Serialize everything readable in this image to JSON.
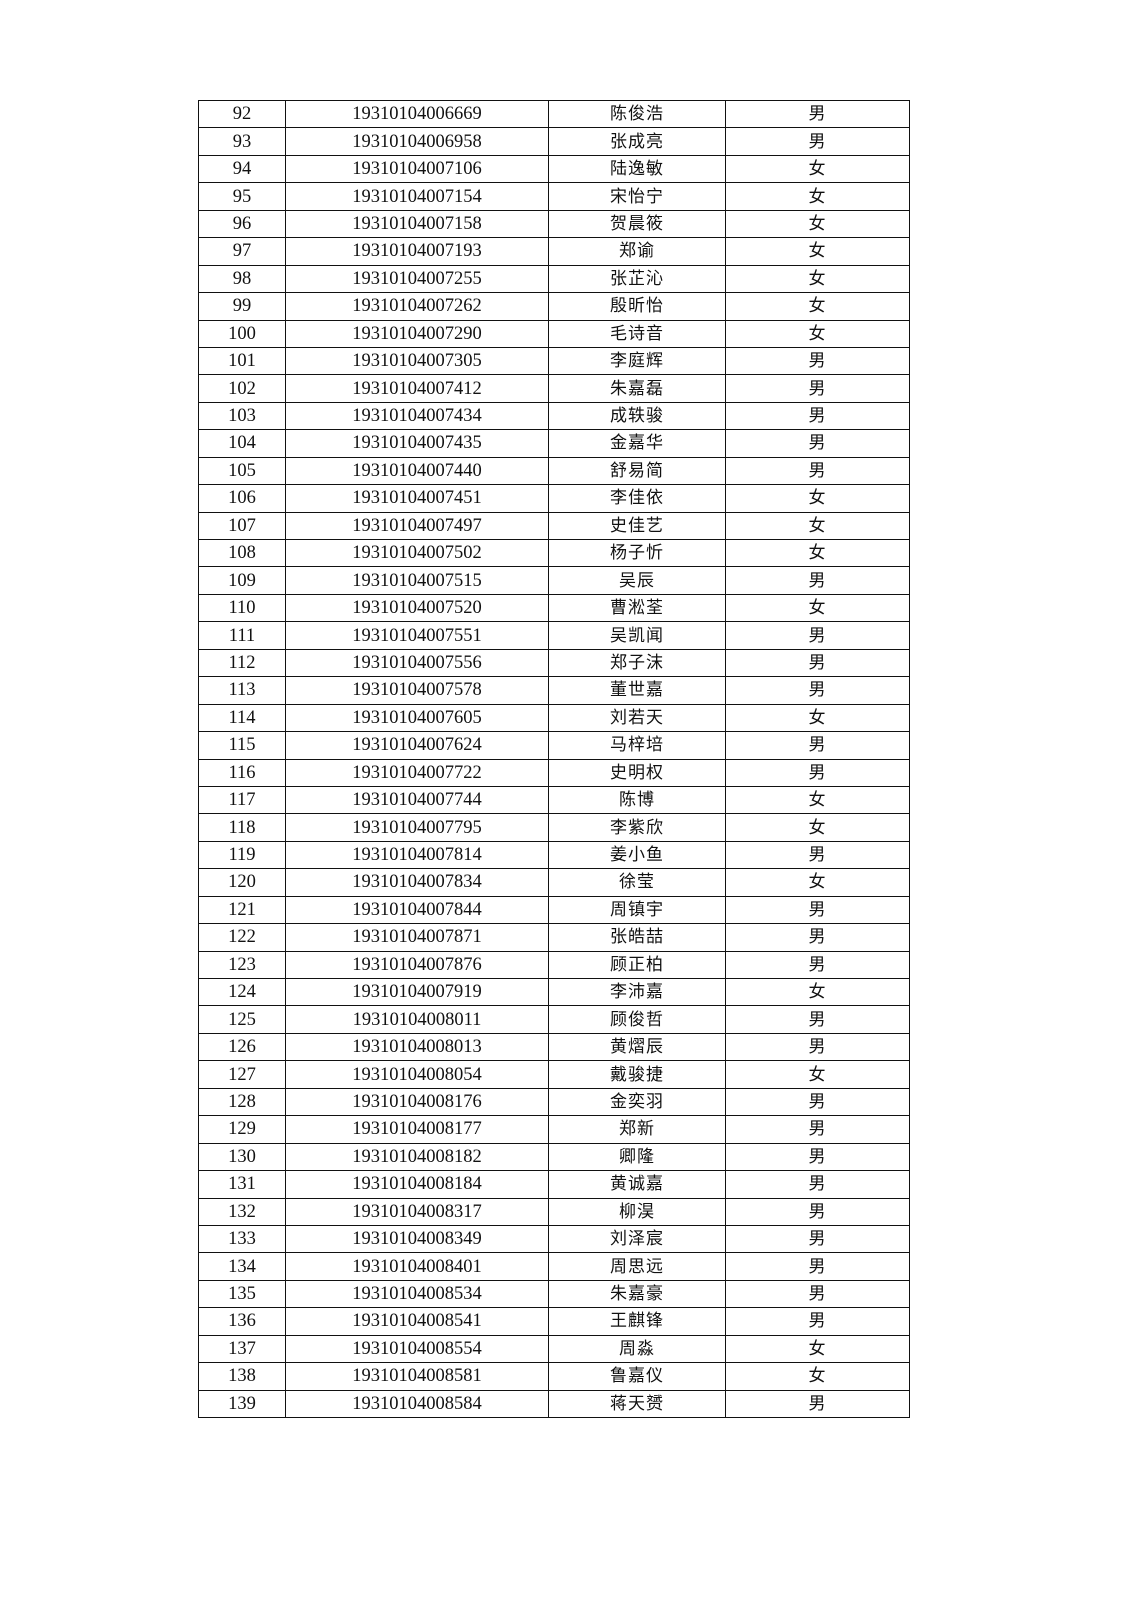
{
  "table": {
    "rows": [
      [
        "92",
        "19310104006669",
        "陈俊浩",
        "男"
      ],
      [
        "93",
        "19310104006958",
        "张成亮",
        "男"
      ],
      [
        "94",
        "19310104007106",
        "陆逸敏",
        "女"
      ],
      [
        "95",
        "19310104007154",
        "宋怡宁",
        "女"
      ],
      [
        "96",
        "19310104007158",
        "贺晨筱",
        "女"
      ],
      [
        "97",
        "19310104007193",
        "郑谕",
        "女"
      ],
      [
        "98",
        "19310104007255",
        "张芷沁",
        "女"
      ],
      [
        "99",
        "19310104007262",
        "殷昕怡",
        "女"
      ],
      [
        "100",
        "19310104007290",
        "毛诗音",
        "女"
      ],
      [
        "101",
        "19310104007305",
        "李庭辉",
        "男"
      ],
      [
        "102",
        "19310104007412",
        "朱嘉磊",
        "男"
      ],
      [
        "103",
        "19310104007434",
        "成轶骏",
        "男"
      ],
      [
        "104",
        "19310104007435",
        "金嘉华",
        "男"
      ],
      [
        "105",
        "19310104007440",
        "舒易简",
        "男"
      ],
      [
        "106",
        "19310104007451",
        "李佳依",
        "女"
      ],
      [
        "107",
        "19310104007497",
        "史佳艺",
        "女"
      ],
      [
        "108",
        "19310104007502",
        "杨子忻",
        "女"
      ],
      [
        "109",
        "19310104007515",
        "吴辰",
        "男"
      ],
      [
        "110",
        "19310104007520",
        "曹淞荃",
        "女"
      ],
      [
        "111",
        "19310104007551",
        "吴凯闻",
        "男"
      ],
      [
        "112",
        "19310104007556",
        "郑子沫",
        "男"
      ],
      [
        "113",
        "19310104007578",
        "董世嘉",
        "男"
      ],
      [
        "114",
        "19310104007605",
        "刘若天",
        "女"
      ],
      [
        "115",
        "19310104007624",
        "马梓培",
        "男"
      ],
      [
        "116",
        "19310104007722",
        "史明权",
        "男"
      ],
      [
        "117",
        "19310104007744",
        "陈博",
        "女"
      ],
      [
        "118",
        "19310104007795",
        "李紫欣",
        "女"
      ],
      [
        "119",
        "19310104007814",
        "姜小鱼",
        "男"
      ],
      [
        "120",
        "19310104007834",
        "徐莹",
        "女"
      ],
      [
        "121",
        "19310104007844",
        "周镇宇",
        "男"
      ],
      [
        "122",
        "19310104007871",
        "张皓喆",
        "男"
      ],
      [
        "123",
        "19310104007876",
        "顾正柏",
        "男"
      ],
      [
        "124",
        "19310104007919",
        "李沛嘉",
        "女"
      ],
      [
        "125",
        "19310104008011",
        "顾俊哲",
        "男"
      ],
      [
        "126",
        "19310104008013",
        "黄熠辰",
        "男"
      ],
      [
        "127",
        "19310104008054",
        "戴骏捷",
        "女"
      ],
      [
        "128",
        "19310104008176",
        "金奕羽",
        "男"
      ],
      [
        "129",
        "19310104008177",
        "郑新",
        "男"
      ],
      [
        "130",
        "19310104008182",
        "卿隆",
        "男"
      ],
      [
        "131",
        "19310104008184",
        "黄诚嘉",
        "男"
      ],
      [
        "132",
        "19310104008317",
        "柳淏",
        "男"
      ],
      [
        "133",
        "19310104008349",
        "刘泽宸",
        "男"
      ],
      [
        "134",
        "19310104008401",
        "周思远",
        "男"
      ],
      [
        "135",
        "19310104008534",
        "朱嘉豪",
        "男"
      ],
      [
        "136",
        "19310104008541",
        "王麒锋",
        "男"
      ],
      [
        "137",
        "19310104008554",
        "周淼",
        "女"
      ],
      [
        "138",
        "19310104008581",
        "鲁嘉仪",
        "女"
      ],
      [
        "139",
        "19310104008584",
        "蒋天赟",
        "男"
      ]
    ]
  }
}
